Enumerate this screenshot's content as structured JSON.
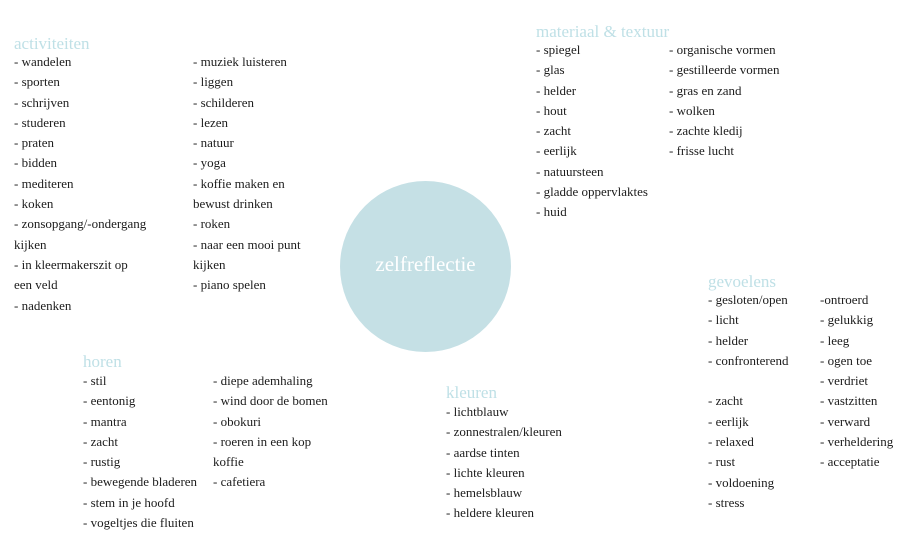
{
  "center": {
    "label": "zelfreflectie"
  },
  "sections": {
    "activiteiten": {
      "title": "activiteiten",
      "col1": [
        "- wandelen",
        "- sporten",
        "- schrijven",
        "- studeren",
        "- praten",
        "- bidden",
        "- mediteren",
        "- koken",
        "- zonsopgang/-ondergang",
        "  kijken",
        "- in kleermakerszit op",
        "  een veld",
        "- nadenken"
      ],
      "col2": [
        "- muziek luisteren",
        "- liggen",
        "- schilderen",
        "- lezen",
        "- natuur",
        "- yoga",
        "- koffie maken en",
        "  bewust drinken",
        "- roken",
        "- naar een mooi punt",
        "  kijken",
        "- piano spelen"
      ]
    },
    "materiaal": {
      "title": "materiaal & textuur",
      "col1": [
        "- spiegel",
        "- glas",
        "- helder",
        "- hout",
        "- zacht",
        "- eerlijk",
        "- natuursteen",
        "- gladde oppervlaktes",
        "- huid"
      ],
      "col2": [
        "- organische vormen",
        "- gestilleerde vormen",
        "- gras en zand",
        "- wolken",
        "- zachte kledij",
        "- frisse lucht"
      ]
    },
    "gevoelens": {
      "title": "gevoelens",
      "col1": [
        "- gesloten/open",
        "- licht",
        "- helder",
        "- confronterend",
        "",
        "- zacht",
        "- eerlijk",
        "- relaxed",
        "- rust",
        "- voldoening",
        "- stress"
      ],
      "col2": [
        "-ontroerd",
        "- gelukkig",
        "- leeg",
        "- ogen toe",
        "- verdriet",
        "- vastzitten",
        "- verward",
        "- verheldering",
        "- acceptatie"
      ]
    },
    "horen": {
      "title": "horen",
      "col1": [
        "- stil",
        "- eentonig",
        "- mantra",
        "- zacht",
        "- rustig",
        "- bewegende bladeren",
        "- stem in je hoofd",
        "- vogeltjes die fluiten"
      ],
      "col2": [
        "- diepe ademhaling",
        "- wind door de bomen",
        "- obokuri",
        "- roeren in een kop",
        "  koffie",
        "- cafetiera"
      ]
    },
    "kleuren": {
      "title": "kleuren",
      "col1": [
        "- lichtblauw",
        "- zonnestralen/kleuren",
        "- aardse tinten",
        "- lichte kleuren",
        "- hemelsblauw",
        "- heldere kleuren"
      ]
    }
  },
  "colors": {
    "title": "#bfe0e6",
    "circle": "#c5e0e5",
    "text": "#1c1c1c"
  }
}
